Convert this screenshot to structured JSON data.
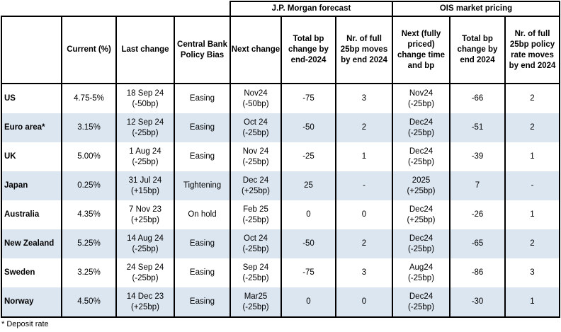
{
  "groups": {
    "jpm": "J.P. Morgan forecast",
    "ois": "OIS market pricing"
  },
  "headers": [
    "",
    "Current (%)",
    "Last change",
    "Central Bank Policy Bias",
    "Next change",
    "Total bp change by end-2024",
    "Nr. of full 25bp moves by end 2024",
    "Next (fully priced) change time and bp",
    "Total bp change by end 2024",
    "Nr. of full 25bp policy rate moves by end 2024"
  ],
  "rows": [
    [
      "US",
      "4.75-5%",
      "18 Sep 24\n(-50bp)",
      "Easing",
      "Nov24\n(-50bp)",
      "-75",
      "3",
      "Nov24\n(-25bp)",
      "-66",
      "2"
    ],
    [
      "Euro area*",
      "3.15%",
      "12 Sep 24\n(-25bp)",
      "Easing",
      "Oct 24\n(-25bp)",
      "-50",
      "2",
      "Dec24\n(-25bp)",
      "-51",
      "2"
    ],
    [
      "UK",
      "5.00%",
      "1 Aug 24\n(-25bp)",
      "Easing",
      "Nov 24\n(-25bp)",
      "-25",
      "1",
      "Dec24\n(-25bp)",
      "-39",
      "1"
    ],
    [
      "Japan",
      "0.25%",
      "31 Jul 24\n(+15bp)",
      "Tightening",
      "Dec 24\n(+25bp)",
      "25",
      "-",
      "2025\n(+25bp)",
      "7",
      "-"
    ],
    [
      "Australia",
      "4.35%",
      "7 Nov 23\n(+25bp)",
      "On hold",
      "Feb 25\n(-25bp)",
      "0",
      "0",
      "Dec24\n(+25bp)",
      "-26",
      "1"
    ],
    [
      "New Zealand",
      "5.25%",
      "14 Aug 24\n(-25bp)",
      "Easing",
      "Oct 24\n(-25bp)",
      "-50",
      "2",
      "Dec24\n(-25bp)",
      "-65",
      "2"
    ],
    [
      "Sweden",
      "3.25%",
      "24 Sep 24\n(-25bp)",
      "Easing",
      "Sep 24\n(-25bp)",
      "-75",
      "3",
      "Aug24\n(-25bp)",
      "-86",
      "3"
    ],
    [
      "Norway",
      "4.50%",
      "14 Dec 23\n(+25bp)",
      "Easing",
      "Mar25\n(-25bp)",
      "0",
      "0",
      "Dec24\n(-25bp)",
      "-30",
      "1"
    ]
  ],
  "footnote": "* Deposit rate",
  "colors": {
    "alt_row": "#dce6f1"
  }
}
